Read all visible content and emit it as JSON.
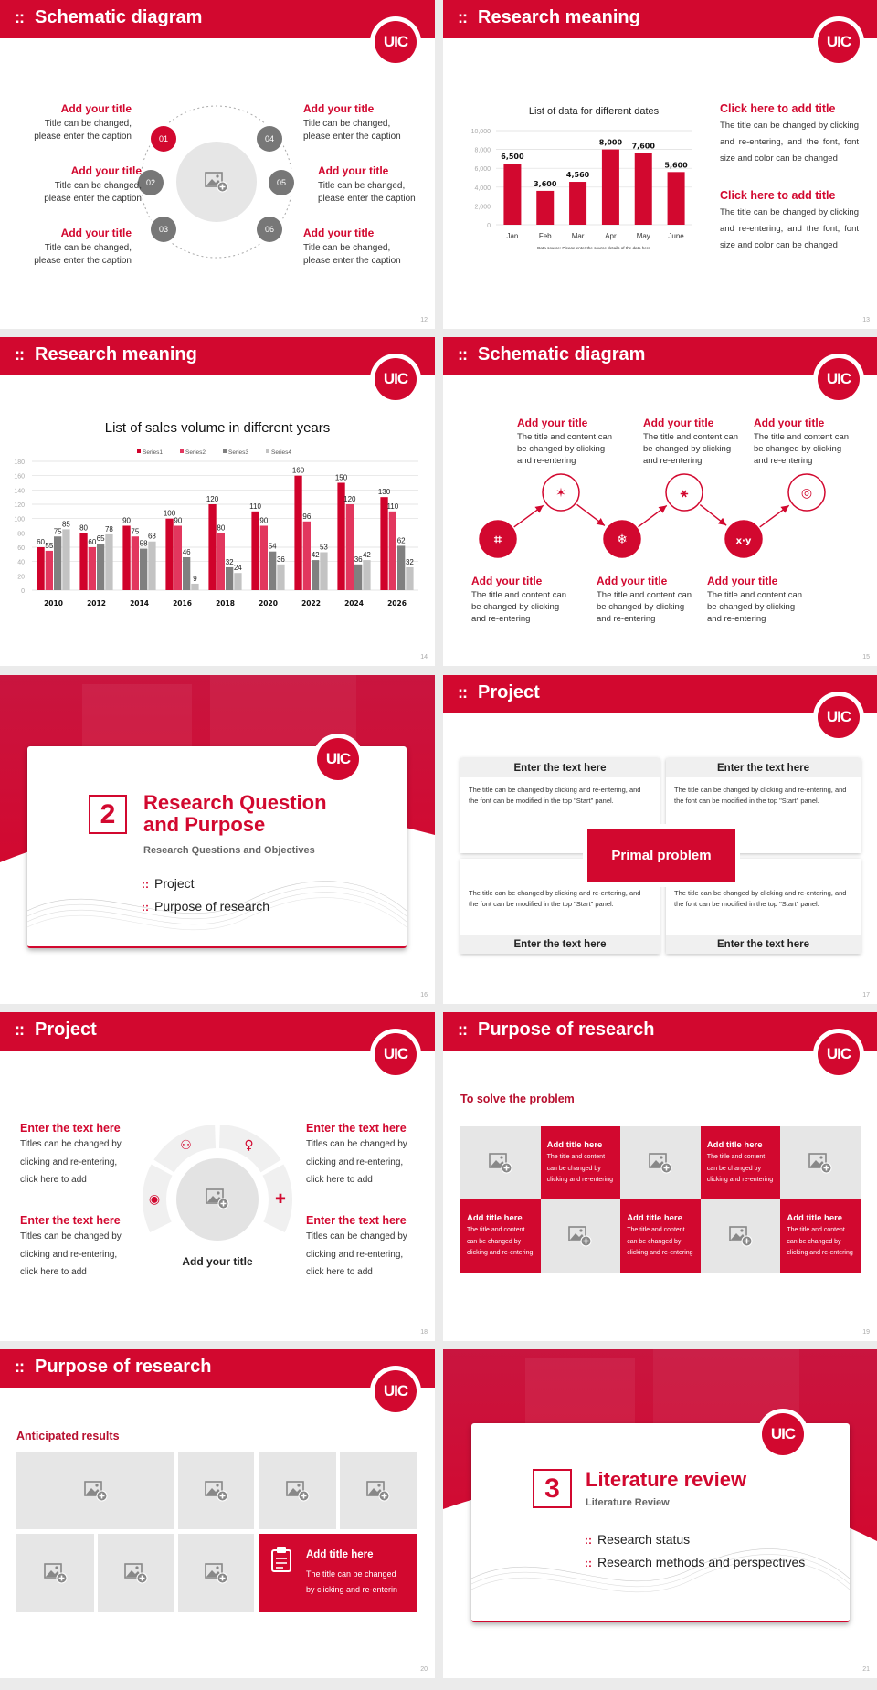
{
  "brand": {
    "logo_text": "UIC",
    "accent": "#d2082f",
    "header_bullet": "::"
  },
  "slide_12": {
    "title": "Schematic diagram",
    "page": "12",
    "items": [
      {
        "num": "01",
        "title": "Add your title",
        "text": "Title can be changed,\nplease enter the caption"
      },
      {
        "num": "02",
        "title": "Add your title",
        "text": "Title can be changed,\nplease enter the caption"
      },
      {
        "num": "03",
        "title": "Add your title",
        "text": "Title can be changed,\nplease enter the caption"
      },
      {
        "num": "04",
        "title": "Add your title",
        "text": "Title can be changed,\nplease enter the caption"
      },
      {
        "num": "05",
        "title": "Add your title",
        "text": "Title can be changed,\nplease enter the caption"
      },
      {
        "num": "06",
        "title": "Add your title",
        "text": "Title can be changed,\nplease enter the caption"
      }
    ]
  },
  "slide_13": {
    "title": "Research meaning",
    "page": "13",
    "side": [
      {
        "title": "Click here to add title",
        "text": "The title can be changed by clicking and re-entering, and the font, font size and color can be changed"
      },
      {
        "title": "Click here to add title",
        "text": "The title can be changed by clicking and re-entering, and the font, font size and color can be changed"
      }
    ]
  },
  "slide_14": {
    "title": "Research meaning",
    "page": "14"
  },
  "slide_15": {
    "title": "Schematic diagram",
    "page": "15",
    "items": [
      {
        "title": "Add your title",
        "text": "The title and content can be changed by clicking and re-entering",
        "icon": "crop-icon"
      },
      {
        "title": "Add your title",
        "text": "The title and content can be changed by clicking and re-entering",
        "icon": "sparkle-icon"
      },
      {
        "title": "Add your title",
        "text": "The title and content can be changed by clicking and re-entering",
        "icon": "snowflake-icon"
      },
      {
        "title": "Add your title",
        "text": "The title and content can be changed by clicking and re-entering",
        "icon": "network-icon"
      },
      {
        "title": "Add your title",
        "text": "The title and content can be changed by clicking and re-entering",
        "icon": "x-y-icon"
      },
      {
        "title": "Add your title",
        "text": "The title and content can be changed by clicking and re-entering",
        "icon": "target-icon"
      }
    ]
  },
  "slide_16": {
    "number": "2",
    "title_line1": "Research Question",
    "title_line2": "and Purpose",
    "subtitle": "Research Questions and Objectives",
    "list": [
      "Project",
      "Purpose of research"
    ],
    "page": "16"
  },
  "slide_17": {
    "title": "Project",
    "page": "17",
    "center": "Primal problem",
    "boxes": [
      {
        "heading": "Enter the text here",
        "text": "The title can be changed by clicking and re-entering, and the font can be modified in the top \"Start\" panel."
      },
      {
        "heading": "Enter the text here",
        "text": "The title can be changed by clicking and re-entering, and the font can be modified in the top \"Start\" panel."
      },
      {
        "heading": "Enter the text here",
        "text": "The title can be changed by clicking and re-entering, and the font can be modified in the top \"Start\" panel."
      },
      {
        "heading": "Enter the text here",
        "text": "The title can be changed by clicking and re-entering, and the font can be modified in the top \"Start\" panel."
      }
    ]
  },
  "slide_18": {
    "title": "Project",
    "page": "18",
    "center_caption": "Add your title",
    "items": [
      {
        "heading": "Enter the text here",
        "text": "Titles can be changed by\nclicking and re-entering,\nclick here to add"
      },
      {
        "heading": "Enter the text here",
        "text": "Titles can be changed by\nclicking and re-entering,\nclick here to add"
      },
      {
        "heading": "Enter the text here",
        "text": "Titles can be changed by\nclicking and re-entering,\nclick here to add"
      },
      {
        "heading": "Enter the text here",
        "text": "Titles can be changed by\nclicking and re-entering,\nclick here to add"
      }
    ],
    "ring_icons": [
      "user-cycle-icon",
      "team-icon",
      "support-agent-icon",
      "reader-icon"
    ]
  },
  "slide_19": {
    "title": "Purpose of research",
    "page": "19",
    "subtitle": "To solve the problem",
    "cards": [
      {
        "title": "Add title here",
        "text": "The title and content can be changed by clicking and re-entering"
      },
      {
        "title": "Add title here",
        "text": "The title and content can be changed by clicking and re-entering"
      },
      {
        "title": "Add title here",
        "text": "The title and content can be changed by clicking and re-entering"
      },
      {
        "title": "Add title here",
        "text": "The title and content can be changed by clicking and re-entering"
      },
      {
        "title": "Add title here",
        "text": "The title and content can be changed by clicking and re-entering"
      }
    ]
  },
  "slide_20": {
    "title": "Purpose of research",
    "page": "20",
    "subtitle": "Anticipated results",
    "card": {
      "title": "Add title here",
      "text": "The title can be changed\nby clicking and re-enterin"
    }
  },
  "slide_21": {
    "number": "3",
    "title": "Literature review",
    "subtitle": "Literature Review",
    "list": [
      "Research status",
      "Research methods and perspectives"
    ],
    "page": "21"
  },
  "chart_data": [
    {
      "type": "bar",
      "title": "List of data for different dates",
      "categories": [
        "Jan",
        "Feb",
        "Mar",
        "Apr",
        "May",
        "June"
      ],
      "values": [
        6500,
        3600,
        4560,
        8000,
        7600,
        5600
      ],
      "data_labels": [
        "6,500",
        "3,600",
        "4,560",
        "8,000",
        "7,600",
        "5,600"
      ],
      "yticks": [
        "0",
        "2,000",
        "4,000",
        "6,000",
        "8,000",
        "10,000"
      ],
      "ylim": [
        0,
        10000
      ],
      "grid": true,
      "note": "Data source: Please enter the source details of the data here",
      "color": "#d2082f"
    },
    {
      "type": "bar",
      "title": "List of sales volume in different years",
      "categories": [
        "2010",
        "2012",
        "2014",
        "2016",
        "2018",
        "2020",
        "2022",
        "2024",
        "2026"
      ],
      "series": [
        {
          "name": "Series1",
          "color": "#d0022b",
          "values": [
            60,
            80,
            90,
            100,
            120,
            110,
            160,
            150,
            130
          ]
        },
        {
          "name": "Series2",
          "color": "#e2375e",
          "values": [
            55,
            60,
            75,
            90,
            80,
            90,
            96,
            120,
            110
          ]
        },
        {
          "name": "Series3",
          "color": "#808080",
          "values": [
            75,
            65,
            58,
            46,
            32,
            54,
            42,
            36,
            62
          ]
        },
        {
          "name": "Series4",
          "color": "#c3c3c3",
          "values": [
            85,
            78,
            68,
            9,
            24,
            36,
            53,
            42,
            32
          ]
        }
      ],
      "yticks": [
        "0",
        "20",
        "40",
        "60",
        "80",
        "100",
        "120",
        "140",
        "160",
        "180"
      ],
      "ylim": [
        0,
        180
      ],
      "grid": true,
      "legend": "top"
    }
  ]
}
